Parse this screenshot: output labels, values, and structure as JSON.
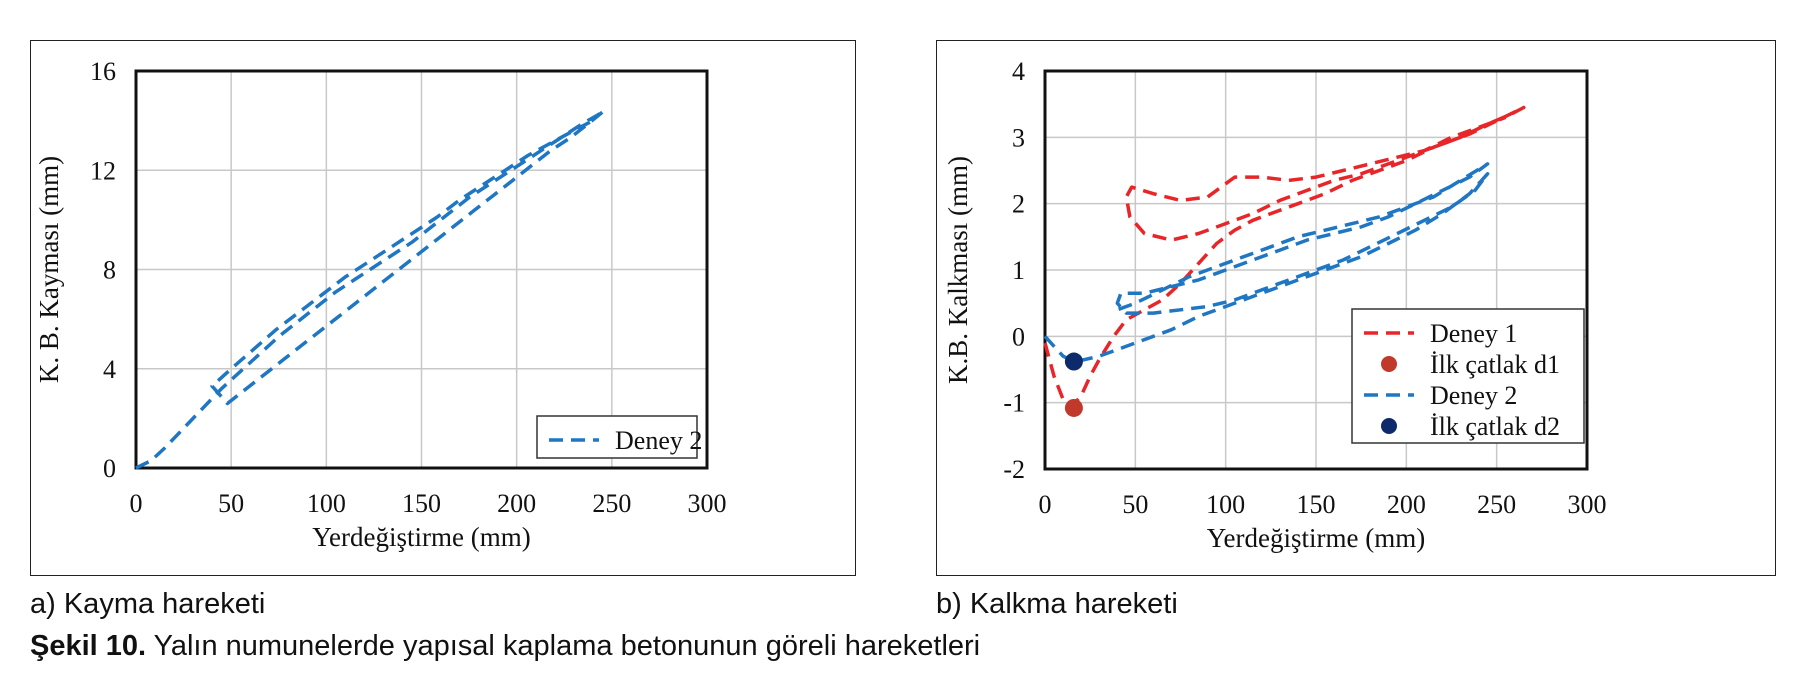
{
  "chart_data": [
    {
      "type": "line",
      "xlabel": "Yerdeğiştirme (mm)",
      "ylabel": "K. B. Kayması (mm)",
      "xlim": [
        0,
        300
      ],
      "ylim": [
        0,
        16
      ],
      "xticks": [
        "0",
        "50",
        "100",
        "150",
        "200",
        "250",
        "300"
      ],
      "yticks": [
        "0",
        "4",
        "8",
        "12",
        "16"
      ],
      "grid": true,
      "legend_position": "bottom-right",
      "series": [
        {
          "name": "Deney 2",
          "color": "#1f77c4",
          "style": "dashed",
          "x": [
            0,
            8,
            15,
            25,
            35,
            45,
            55,
            65,
            75,
            85,
            95,
            105,
            115,
            125,
            135,
            145,
            155,
            165,
            175,
            185,
            195,
            205,
            215,
            225,
            235,
            242,
            246,
            238,
            228,
            218,
            208,
            198,
            188,
            178,
            168,
            158,
            148,
            138,
            128,
            118,
            108,
            98,
            88,
            78,
            68,
            58,
            48,
            40,
            50,
            62,
            74,
            86,
            98,
            110,
            122,
            134,
            146,
            158,
            170,
            182,
            194,
            206,
            218,
            230,
            240
          ],
          "y": [
            0,
            0.3,
            0.8,
            1.6,
            2.4,
            3.2,
            3.9,
            4.6,
            5.3,
            5.9,
            6.5,
            7.1,
            7.6,
            8.1,
            8.6,
            9.1,
            9.7,
            10.3,
            10.9,
            11.4,
            11.9,
            12.4,
            12.9,
            13.4,
            13.9,
            14.2,
            14.4,
            13.9,
            13.3,
            12.8,
            12.2,
            11.6,
            11.0,
            10.4,
            9.8,
            9.2,
            8.6,
            8.0,
            7.4,
            6.8,
            6.2,
            5.6,
            5.0,
            4.4,
            3.8,
            3.2,
            2.6,
            3.3,
            4.0,
            4.8,
            5.6,
            6.3,
            7.0,
            7.7,
            8.3,
            8.9,
            9.5,
            10.1,
            10.8,
            11.4,
            12.0,
            12.6,
            13.1,
            13.6,
            14.0
          ]
        }
      ]
    },
    {
      "type": "line",
      "xlabel": "Yerdeğiştirme (mm)",
      "ylabel": "K.B. Kalkması (mm)",
      "xlim": [
        0,
        300
      ],
      "ylim": [
        -2,
        4
      ],
      "xticks": [
        "0",
        "50",
        "100",
        "150",
        "200",
        "250",
        "300"
      ],
      "yticks": [
        "-2",
        "-1",
        "0",
        "1",
        "2",
        "3",
        "4"
      ],
      "grid": true,
      "legend_position": "bottom-right",
      "series": [
        {
          "name": "Deney 1",
          "color": "#e8262a",
          "style": "dashed",
          "x": [
            0,
            5,
            10,
            15,
            20,
            25,
            30,
            38,
            45,
            55,
            65,
            75,
            85,
            95,
            105,
            115,
            125,
            140,
            155,
            170,
            185,
            200,
            215,
            230,
            245,
            258,
            265,
            250,
            235,
            220,
            205,
            190,
            175,
            160,
            145,
            130,
            115,
            100,
            85,
            70,
            55,
            47,
            45,
            48,
            60,
            75,
            90,
            105,
            120,
            135,
            150,
            165,
            180,
            195,
            210,
            225,
            240,
            255
          ],
          "y": [
            -0.1,
            -0.6,
            -0.95,
            -1.05,
            -0.9,
            -0.6,
            -0.35,
            0.0,
            0.25,
            0.4,
            0.55,
            0.8,
            1.1,
            1.4,
            1.6,
            1.75,
            1.85,
            2.0,
            2.15,
            2.35,
            2.5,
            2.65,
            2.85,
            3.0,
            3.2,
            3.35,
            3.45,
            3.25,
            3.05,
            2.9,
            2.75,
            2.6,
            2.45,
            2.35,
            2.2,
            2.05,
            1.85,
            1.7,
            1.55,
            1.45,
            1.55,
            1.8,
            2.1,
            2.25,
            2.15,
            2.05,
            2.1,
            2.4,
            2.4,
            2.35,
            2.4,
            2.5,
            2.6,
            2.7,
            2.8,
            3.0,
            3.15,
            3.3
          ]
        },
        {
          "name": "İlk çatlak d1",
          "color": "#c0392b",
          "style": "marker",
          "x": [
            16
          ],
          "y": [
            -1.08
          ]
        },
        {
          "name": "Deney 2",
          "color": "#1f77c4",
          "style": "dashed",
          "x": [
            0,
            5,
            10,
            16,
            22,
            30,
            40,
            55,
            70,
            85,
            100,
            115,
            130,
            145,
            160,
            175,
            190,
            205,
            220,
            235,
            245,
            238,
            225,
            210,
            195,
            180,
            165,
            150,
            135,
            120,
            105,
            90,
            75,
            60,
            45,
            40,
            42,
            55,
            70,
            85,
            100,
            115,
            130,
            145,
            160,
            175,
            190,
            205,
            220,
            235,
            245,
            230,
            215,
            200,
            185,
            170,
            155,
            140,
            125,
            110,
            95,
            80,
            65,
            50,
            40
          ],
          "y": [
            0.0,
            -0.15,
            -0.3,
            -0.38,
            -0.35,
            -0.3,
            -0.2,
            -0.05,
            0.1,
            0.3,
            0.45,
            0.6,
            0.75,
            0.9,
            1.05,
            1.2,
            1.4,
            1.6,
            1.85,
            2.15,
            2.45,
            2.2,
            1.95,
            1.75,
            1.55,
            1.35,
            1.15,
            1.0,
            0.85,
            0.7,
            0.55,
            0.45,
            0.4,
            0.35,
            0.35,
            0.5,
            0.65,
            0.65,
            0.75,
            0.85,
            1.0,
            1.15,
            1.3,
            1.45,
            1.55,
            1.65,
            1.8,
            2.0,
            2.2,
            2.4,
            2.6,
            2.35,
            2.1,
            1.95,
            1.8,
            1.7,
            1.6,
            1.5,
            1.35,
            1.2,
            1.05,
            0.9,
            0.7,
            0.5,
            0.4
          ]
        },
        {
          "name": "İlk çatlak d2",
          "color": "#0d2a6b",
          "style": "marker",
          "x": [
            16
          ],
          "y": [
            -0.38
          ]
        }
      ]
    }
  ],
  "captions": {
    "a": "a) Kayma hareketi",
    "b": "b) Kalkma hareketi",
    "figure_label": "Şekil 10.",
    "figure_text": " Yalın numunelerde yapısal kaplama betonunun göreli hareketleri"
  }
}
